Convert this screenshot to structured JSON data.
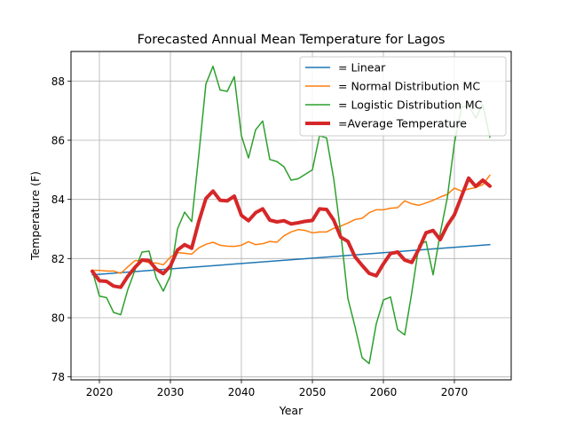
{
  "chart_data": {
    "type": "line",
    "title": "Forecasted Annual Mean Temperature for Lagos",
    "xlabel": "Year",
    "ylabel": "Temperature (F)",
    "xlim": [
      2016,
      2078
    ],
    "ylim": [
      77.9,
      89.0
    ],
    "xticks": [
      2020,
      2030,
      2040,
      2050,
      2060,
      2070
    ],
    "yticks": [
      78,
      80,
      82,
      84,
      86,
      88
    ],
    "grid": true,
    "legend_position": "top-right",
    "series": [
      {
        "name": "= Linear",
        "color": "#1f77b4",
        "x": [
          2019,
          2075
        ],
        "values": [
          81.45,
          82.47
        ]
      },
      {
        "name": "= Normal Distribution MC",
        "color": "#ff7f0e",
        "x": [
          2019,
          2020,
          2021,
          2022,
          2023,
          2024,
          2025,
          2026,
          2027,
          2028,
          2029,
          2030,
          2031,
          2032,
          2033,
          2034,
          2035,
          2036,
          2037,
          2038,
          2039,
          2040,
          2041,
          2042,
          2043,
          2044,
          2045,
          2046,
          2047,
          2048,
          2049,
          2050,
          2051,
          2052,
          2053,
          2054,
          2055,
          2056,
          2057,
          2058,
          2059,
          2060,
          2061,
          2062,
          2063,
          2064,
          2065,
          2066,
          2067,
          2068,
          2069,
          2070,
          2071,
          2072,
          2073,
          2074,
          2075
        ],
        "values": [
          81.6,
          81.6,
          81.58,
          81.58,
          81.5,
          81.72,
          81.93,
          81.93,
          81.86,
          81.85,
          81.79,
          82.05,
          82.2,
          82.18,
          82.15,
          82.36,
          82.48,
          82.55,
          82.45,
          82.42,
          82.41,
          82.45,
          82.57,
          82.47,
          82.5,
          82.58,
          82.55,
          82.77,
          82.9,
          82.98,
          82.95,
          82.87,
          82.9,
          82.9,
          83.02,
          83.1,
          83.2,
          83.32,
          83.36,
          83.55,
          83.65,
          83.65,
          83.7,
          83.72,
          83.95,
          83.85,
          83.8,
          83.88,
          83.97,
          84.08,
          84.17,
          84.38,
          84.28,
          84.35,
          84.4,
          84.5,
          84.82
        ]
      },
      {
        "name": "= Logistic Distribution MC",
        "color": "#2ca02c",
        "x": [
          2019,
          2020,
          2021,
          2022,
          2023,
          2024,
          2025,
          2026,
          2027,
          2028,
          2029,
          2030,
          2031,
          2032,
          2033,
          2034,
          2035,
          2036,
          2037,
          2038,
          2039,
          2040,
          2041,
          2042,
          2043,
          2044,
          2045,
          2046,
          2047,
          2048,
          2049,
          2050,
          2051,
          2052,
          2053,
          2054,
          2055,
          2056,
          2057,
          2058,
          2059,
          2060,
          2061,
          2062,
          2063,
          2064,
          2065,
          2066,
          2067,
          2068,
          2069,
          2070,
          2071,
          2072,
          2073,
          2074,
          2075
        ],
        "values": [
          81.6,
          80.73,
          80.68,
          80.18,
          80.1,
          80.95,
          81.6,
          82.22,
          82.25,
          81.35,
          80.9,
          81.42,
          83.0,
          83.57,
          83.25,
          85.5,
          87.9,
          88.5,
          87.7,
          87.65,
          88.15,
          86.15,
          85.4,
          86.35,
          86.65,
          85.35,
          85.28,
          85.1,
          84.65,
          84.7,
          84.85,
          85.0,
          86.15,
          86.08,
          84.7,
          82.85,
          80.65,
          79.7,
          78.65,
          78.45,
          79.8,
          80.6,
          80.7,
          79.6,
          79.42,
          80.85,
          82.45,
          82.58,
          81.45,
          82.85,
          84.05,
          85.9,
          87.1,
          87.2,
          86.75,
          87.2,
          86.1
        ]
      },
      {
        "name": "=Average Temperature",
        "color": "#d62728",
        "x": [
          2019,
          2020,
          2021,
          2022,
          2023,
          2024,
          2025,
          2026,
          2027,
          2028,
          2029,
          2030,
          2031,
          2032,
          2033,
          2034,
          2035,
          2036,
          2037,
          2038,
          2039,
          2040,
          2041,
          2042,
          2043,
          2044,
          2045,
          2046,
          2047,
          2048,
          2049,
          2050,
          2051,
          2052,
          2053,
          2054,
          2055,
          2056,
          2057,
          2058,
          2059,
          2060,
          2061,
          2062,
          2063,
          2064,
          2065,
          2066,
          2067,
          2068,
          2069,
          2070,
          2071,
          2072,
          2073,
          2074,
          2075
        ],
        "values": [
          81.57,
          81.25,
          81.23,
          81.07,
          81.03,
          81.4,
          81.7,
          81.95,
          81.93,
          81.64,
          81.49,
          81.75,
          82.29,
          82.47,
          82.35,
          83.25,
          84.03,
          84.28,
          83.97,
          83.95,
          84.11,
          83.46,
          83.28,
          83.55,
          83.68,
          83.3,
          83.24,
          83.28,
          83.17,
          83.21,
          83.26,
          83.29,
          83.68,
          83.66,
          83.3,
          82.72,
          82.58,
          82.06,
          81.77,
          81.5,
          81.42,
          81.82,
          82.17,
          82.22,
          81.95,
          81.87,
          82.32,
          82.87,
          82.95,
          82.64,
          83.12,
          83.48,
          84.1,
          84.72,
          84.44,
          84.65,
          84.45
        ]
      }
    ]
  }
}
